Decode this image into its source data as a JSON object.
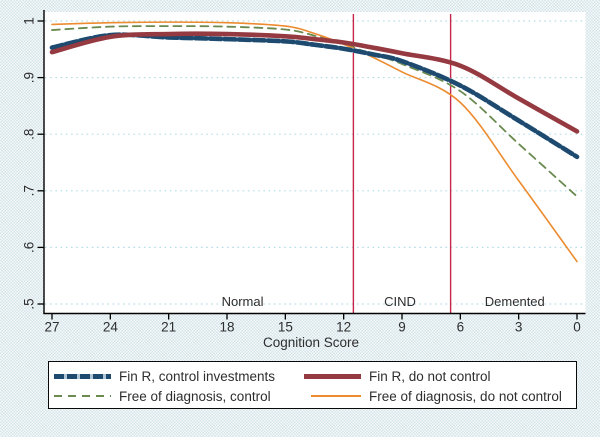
{
  "chart_data": {
    "type": "line",
    "title": "",
    "xlabel": "Cognition Score",
    "ylabel": "",
    "x_axis_reversed": true,
    "xlim": [
      27.5,
      -0.5
    ],
    "ylim": [
      0.47,
      1.005
    ],
    "grid": true,
    "legend_position": "bottom",
    "x_ticks": [
      27,
      24,
      21,
      18,
      15,
      12,
      9,
      6,
      3,
      0
    ],
    "y_ticks": [
      {
        "label": "1",
        "value": 1.0
      },
      {
        "label": ".9",
        "value": 0.9
      },
      {
        "label": ".8",
        "value": 0.8
      },
      {
        "label": ".7",
        "value": 0.7
      },
      {
        "label": ".6",
        "value": 0.6
      },
      {
        "label": ".5",
        "value": 0.5
      }
    ],
    "x": [
      27,
      24,
      21,
      18,
      15,
      13.5,
      12,
      10.5,
      9,
      6,
      3,
      0
    ],
    "series": [
      {
        "name": "Fin R, control investments",
        "color": "#1d4a6e",
        "style": "thick-dash",
        "values": [
          0.953,
          0.975,
          0.971,
          0.968,
          0.964,
          0.958,
          0.951,
          0.941,
          0.929,
          0.886,
          0.824,
          0.76
        ]
      },
      {
        "name": "Fin R, do not control",
        "color": "#953a40",
        "style": "thick-solid",
        "values": [
          0.945,
          0.972,
          0.977,
          0.977,
          0.973,
          0.968,
          0.962,
          0.953,
          0.943,
          0.921,
          0.863,
          0.805
        ]
      },
      {
        "name": "Free of diagnosis, control",
        "color": "#6a8a50",
        "style": "dash",
        "values": [
          0.984,
          0.99,
          0.991,
          0.99,
          0.985,
          0.974,
          0.959,
          0.941,
          0.924,
          0.876,
          0.783,
          0.69
        ]
      },
      {
        "name": "Free of diagnosis, do not control",
        "color": "#ec8b2f",
        "style": "thin-solid",
        "values": [
          0.994,
          0.997,
          0.998,
          0.997,
          0.991,
          0.978,
          0.959,
          0.936,
          0.91,
          0.856,
          0.718,
          0.575
        ]
      }
    ],
    "draw_order": [
      2,
      3,
      0,
      1
    ],
    "vlines": [
      {
        "x": 11.5
      },
      {
        "x": 6.5
      }
    ],
    "region_labels": [
      {
        "label": "Normal",
        "x": 17.2
      },
      {
        "label": "CIND",
        "x": 9.1
      },
      {
        "label": "Demented",
        "x": 3.2
      }
    ],
    "colors": {
      "grid": "#b5dde8",
      "vline": "#c62648",
      "axis": "#000000",
      "text": "#2e2e2e",
      "plot_background": "#ffffff",
      "navy_dash_gap": "#b0c6d6"
    }
  }
}
